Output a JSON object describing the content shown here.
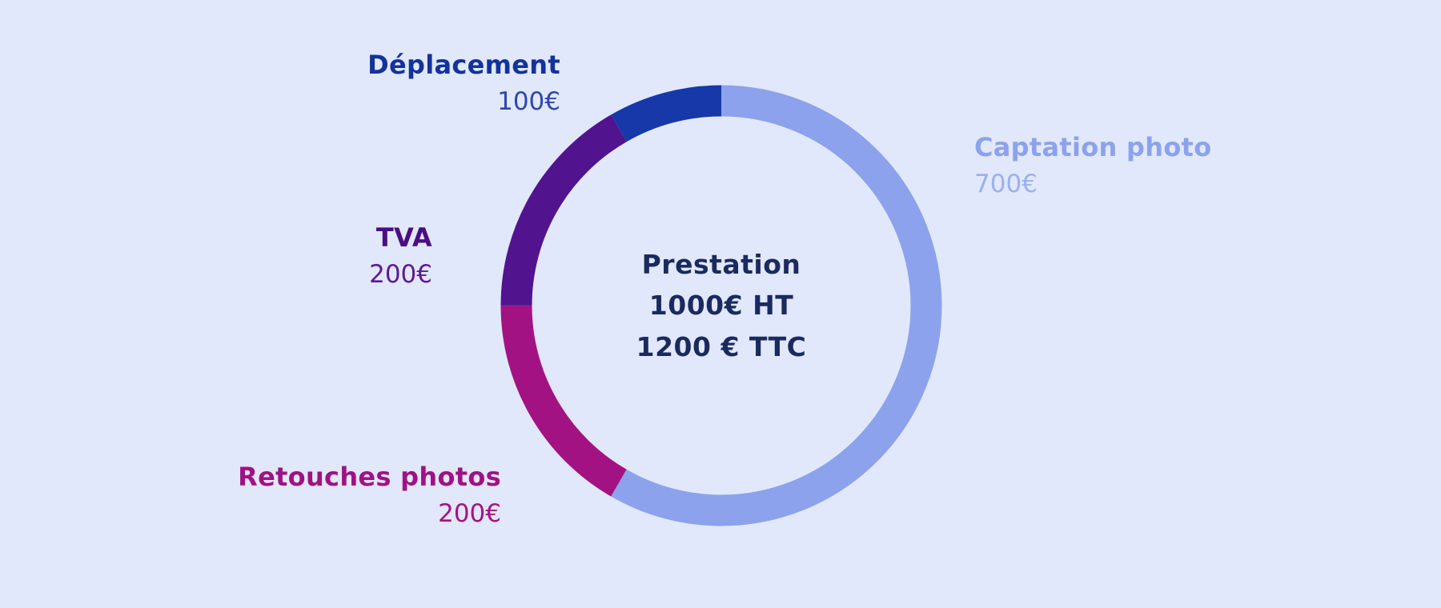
{
  "background": "#e1e8fb",
  "chart_data": {
    "type": "pie",
    "subtype": "donut",
    "title": "Prestation 1000€ HT / 1200 € TTC",
    "total": 1200,
    "currency": "EUR",
    "start_angle": -90,
    "direction": "clockwise",
    "legend_position": "around-chart",
    "center_label": {
      "line1": "Prestation",
      "line2": "1000€ HT",
      "line3": "1200 € TTC",
      "color": "#1b2a5e"
    },
    "segments": [
      {
        "name": "Captation photo",
        "value": 700,
        "value_label": "700€",
        "color": "#8ca2ec",
        "name_color": "#8ca2ec",
        "value_color": "#9cafef"
      },
      {
        "name": "Retouches photos",
        "value": 200,
        "value_label": "200€",
        "color": "#a31283",
        "name_color": "#a01283",
        "value_color": "#a51383"
      },
      {
        "name": "TVA",
        "value": 200,
        "value_label": "200€",
        "color": "#52138f",
        "name_color": "#4b0e82",
        "value_color": "#5c1b94"
      },
      {
        "name": "Déplacement",
        "value": 100,
        "value_label": "100€",
        "color": "#1638a8",
        "name_color": "#14329c",
        "value_color": "#2e47ae"
      }
    ]
  }
}
